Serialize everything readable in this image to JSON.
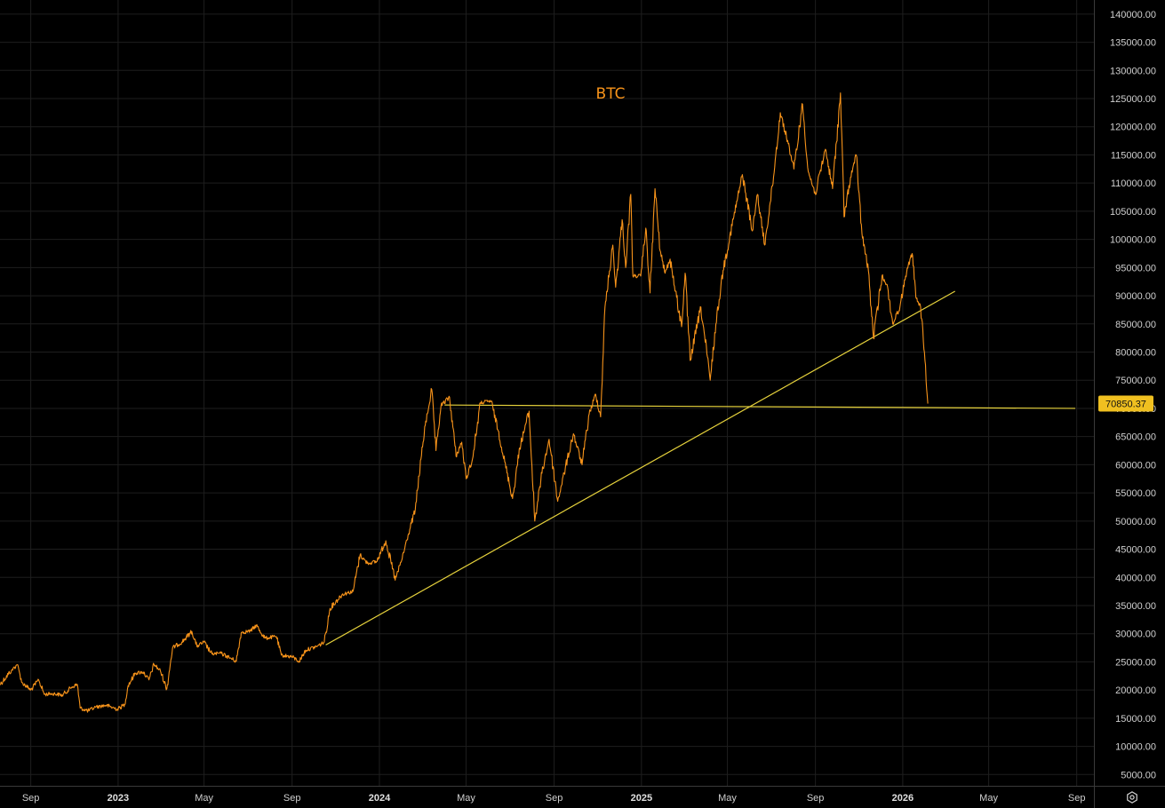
{
  "chart_data": {
    "type": "line",
    "title": "BTC",
    "y_ticks": [
      140000,
      135000,
      130000,
      125000,
      120000,
      115000,
      110000,
      105000,
      100000,
      95000,
      90000,
      85000,
      80000,
      75000,
      70000,
      65000,
      60000,
      55000,
      50000,
      45000,
      40000,
      35000,
      30000,
      25000,
      20000,
      15000,
      10000,
      5000
    ],
    "ylim": [
      3000,
      142500
    ],
    "xlim": [
      "2022-07-20",
      "2026-09-25"
    ],
    "x_ticks": [
      {
        "label": "Sep",
        "date": "2022-09-01",
        "year": false
      },
      {
        "label": "2023",
        "date": "2023-01-01",
        "year": true
      },
      {
        "label": "May",
        "date": "2023-05-01",
        "year": false
      },
      {
        "label": "Sep",
        "date": "2023-09-01",
        "year": false
      },
      {
        "label": "2024",
        "date": "2024-01-01",
        "year": true
      },
      {
        "label": "May",
        "date": "2024-05-01",
        "year": false
      },
      {
        "label": "Sep",
        "date": "2024-09-01",
        "year": false
      },
      {
        "label": "2025",
        "date": "2025-01-01",
        "year": true
      },
      {
        "label": "May",
        "date": "2025-05-01",
        "year": false
      },
      {
        "label": "Sep",
        "date": "2025-09-01",
        "year": false
      },
      {
        "label": "2026",
        "date": "2026-01-01",
        "year": true
      },
      {
        "label": "May",
        "date": "2026-05-01",
        "year": false
      },
      {
        "label": "Sep",
        "date": "2026-09-01",
        "year": false
      }
    ],
    "series": [
      {
        "color": "#f7931a",
        "points": [
          [
            "2022-07-20",
            21000
          ],
          [
            "2022-08-05",
            23500
          ],
          [
            "2022-08-13",
            24500
          ],
          [
            "2022-08-20",
            21300
          ],
          [
            "2022-09-01",
            20000
          ],
          [
            "2022-09-12",
            21800
          ],
          [
            "2022-09-20",
            19200
          ],
          [
            "2022-10-01",
            19400
          ],
          [
            "2022-10-15",
            19100
          ],
          [
            "2022-10-28",
            20500
          ],
          [
            "2022-11-05",
            21000
          ],
          [
            "2022-11-09",
            16800
          ],
          [
            "2022-11-20",
            16300
          ],
          [
            "2022-12-01",
            17000
          ],
          [
            "2022-12-15",
            17300
          ],
          [
            "2022-12-31",
            16600
          ],
          [
            "2023-01-10",
            17400
          ],
          [
            "2023-01-15",
            20800
          ],
          [
            "2023-01-25",
            23000
          ],
          [
            "2023-02-05",
            23200
          ],
          [
            "2023-02-13",
            21800
          ],
          [
            "2023-02-20",
            24600
          ],
          [
            "2023-03-01",
            23400
          ],
          [
            "2023-03-10",
            20200
          ],
          [
            "2023-03-18",
            27500
          ],
          [
            "2023-03-31",
            28500
          ],
          [
            "2023-04-14",
            30400
          ],
          [
            "2023-04-21",
            27800
          ],
          [
            "2023-05-01",
            28500
          ],
          [
            "2023-05-12",
            26400
          ],
          [
            "2023-05-25",
            26500
          ],
          [
            "2023-06-05",
            25800
          ],
          [
            "2023-06-15",
            25100
          ],
          [
            "2023-06-22",
            30200
          ],
          [
            "2023-07-05",
            30500
          ],
          [
            "2023-07-13",
            31500
          ],
          [
            "2023-07-25",
            29200
          ],
          [
            "2023-08-10",
            29500
          ],
          [
            "2023-08-17",
            26200
          ],
          [
            "2023-09-01",
            25900
          ],
          [
            "2023-09-11",
            25100
          ],
          [
            "2023-09-20",
            27100
          ],
          [
            "2023-10-05",
            27700
          ],
          [
            "2023-10-16",
            28500
          ],
          [
            "2023-10-24",
            34500
          ],
          [
            "2023-11-10",
            37000
          ],
          [
            "2023-11-25",
            37500
          ],
          [
            "2023-12-05",
            44000
          ],
          [
            "2023-12-15",
            42500
          ],
          [
            "2023-12-28",
            42800
          ],
          [
            "2024-01-10",
            46500
          ],
          [
            "2024-01-23",
            39500
          ],
          [
            "2024-02-01",
            43000
          ],
          [
            "2024-02-10",
            47500
          ],
          [
            "2024-02-20",
            52000
          ],
          [
            "2024-02-28",
            61000
          ],
          [
            "2024-03-05",
            67000
          ],
          [
            "2024-03-14",
            73400
          ],
          [
            "2024-03-20",
            62500
          ],
          [
            "2024-03-27",
            70500
          ],
          [
            "2024-04-08",
            72000
          ],
          [
            "2024-04-17",
            61500
          ],
          [
            "2024-04-25",
            64000
          ],
          [
            "2024-05-01",
            57500
          ],
          [
            "2024-05-10",
            61000
          ],
          [
            "2024-05-21",
            71000
          ],
          [
            "2024-06-05",
            71300
          ],
          [
            "2024-06-15",
            66000
          ],
          [
            "2024-06-24",
            60500
          ],
          [
            "2024-07-05",
            54000
          ],
          [
            "2024-07-15",
            63000
          ],
          [
            "2024-07-28",
            69500
          ],
          [
            "2024-08-05",
            50000
          ],
          [
            "2024-08-15",
            58500
          ],
          [
            "2024-08-25",
            64500
          ],
          [
            "2024-09-06",
            53500
          ],
          [
            "2024-09-15",
            58500
          ],
          [
            "2024-09-28",
            65500
          ],
          [
            "2024-10-10",
            60000
          ],
          [
            "2024-10-20",
            69000
          ],
          [
            "2024-10-29",
            72500
          ],
          [
            "2024-11-05",
            68500
          ],
          [
            "2024-11-11",
            88000
          ],
          [
            "2024-11-22",
            99000
          ],
          [
            "2024-11-26",
            91500
          ],
          [
            "2024-12-05",
            103500
          ],
          [
            "2024-12-10",
            95000
          ],
          [
            "2024-12-17",
            108000
          ],
          [
            "2024-12-20",
            93500
          ],
          [
            "2024-12-31",
            93500
          ],
          [
            "2025-01-07",
            102000
          ],
          [
            "2025-01-13",
            90500
          ],
          [
            "2025-01-20",
            109000
          ],
          [
            "2025-01-27",
            98000
          ],
          [
            "2025-02-03",
            94000
          ],
          [
            "2025-02-10",
            96500
          ],
          [
            "2025-02-26",
            84500
          ],
          [
            "2025-03-03",
            94000
          ],
          [
            "2025-03-10",
            78500
          ],
          [
            "2025-03-25",
            88000
          ],
          [
            "2025-04-07",
            75000
          ],
          [
            "2025-04-15",
            85000
          ],
          [
            "2025-04-25",
            94500
          ],
          [
            "2025-05-10",
            104000
          ],
          [
            "2025-05-22",
            111500
          ],
          [
            "2025-06-05",
            101500
          ],
          [
            "2025-06-12",
            108000
          ],
          [
            "2025-06-22",
            99000
          ],
          [
            "2025-07-03",
            109500
          ],
          [
            "2025-07-14",
            122500
          ],
          [
            "2025-07-25",
            117000
          ],
          [
            "2025-08-02",
            112500
          ],
          [
            "2025-08-14",
            124000
          ],
          [
            "2025-08-22",
            112000
          ],
          [
            "2025-09-01",
            108000
          ],
          [
            "2025-09-15",
            116000
          ],
          [
            "2025-09-25",
            109000
          ],
          [
            "2025-10-06",
            126000
          ],
          [
            "2025-10-11",
            104000
          ],
          [
            "2025-10-20",
            111000
          ],
          [
            "2025-10-28",
            115000
          ],
          [
            "2025-11-05",
            101000
          ],
          [
            "2025-11-14",
            94500
          ],
          [
            "2025-11-21",
            82500
          ],
          [
            "2025-12-03",
            93500
          ],
          [
            "2025-12-10",
            92000
          ],
          [
            "2025-12-18",
            85000
          ],
          [
            "2025-12-28",
            88000
          ],
          [
            "2026-01-05",
            93500
          ],
          [
            "2026-01-14",
            97500
          ],
          [
            "2026-01-20",
            89500
          ],
          [
            "2026-01-26",
            88000
          ],
          [
            "2026-02-01",
            78500
          ],
          [
            "2026-02-05",
            70850
          ]
        ]
      }
    ],
    "trendlines": [
      {
        "color": "#e6d23c",
        "from": [
          "2023-10-18",
          28000
        ],
        "to": [
          "2026-03-15",
          90800
        ]
      },
      {
        "color": "#e6d23c",
        "from": [
          "2024-04-01",
          70600
        ],
        "to": [
          "2026-08-30",
          70000
        ]
      }
    ],
    "last_price": {
      "value": 70850,
      "label": "70850.37",
      "color": "#f0c020"
    },
    "grid": true,
    "axis_side": "right",
    "background": "#000000",
    "grid_color": "#1e1e1e"
  },
  "icons": {
    "settings": "gear-icon"
  }
}
